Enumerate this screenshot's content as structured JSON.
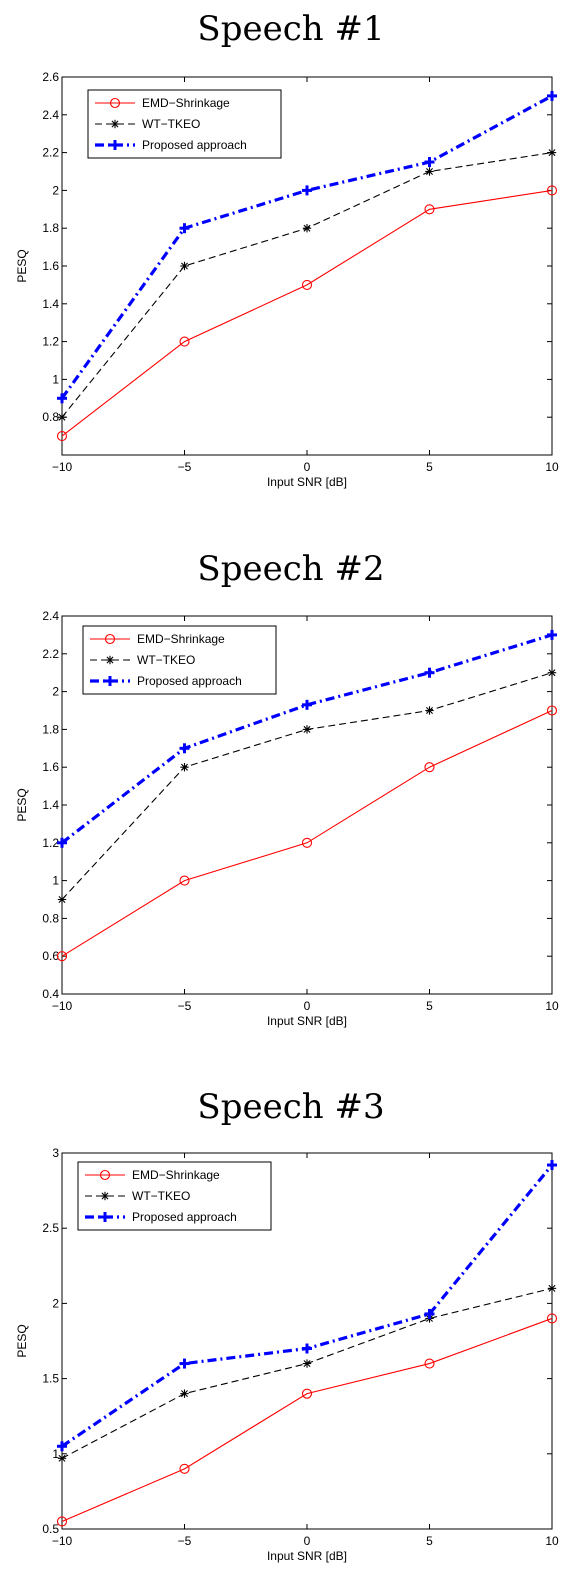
{
  "chart_data": [
    {
      "type": "line",
      "title": "Speech #1",
      "xlabel": "Input SNR [dB]",
      "ylabel": "PESQ",
      "x": [
        -10,
        -5,
        0,
        5,
        10
      ],
      "xlim": [
        -10,
        10
      ],
      "ylim": [
        0.6,
        2.6
      ],
      "xticks": [
        -10,
        -5,
        0,
        5,
        10
      ],
      "yticks": [
        0.8,
        1,
        1.2,
        1.4,
        1.6,
        1.8,
        2,
        2.2,
        2.4,
        2.6
      ],
      "ytick_labels": [
        "0.8",
        "1",
        "1.2",
        "1.4",
        "1.6",
        "1.8",
        "2",
        "2.2",
        "2.4",
        "2.6"
      ],
      "legend_position": "top-left",
      "grid": false,
      "series": [
        {
          "name": "EMD−Shrinkage",
          "values": [
            0.7,
            1.2,
            1.5,
            1.9,
            2.0
          ],
          "color": "#ff0000",
          "marker": "circle",
          "style": "solid"
        },
        {
          "name": "WT−TKEO",
          "values": [
            0.8,
            1.6,
            1.8,
            2.1,
            2.2
          ],
          "color": "#000000",
          "marker": "asterisk",
          "style": "dashed"
        },
        {
          "name": "Proposed approach",
          "values": [
            0.9,
            1.8,
            2.0,
            2.15,
            2.5
          ],
          "color": "#0000ff",
          "marker": "plus",
          "style": "dashdot"
        }
      ]
    },
    {
      "type": "line",
      "title": "Speech #2",
      "xlabel": "Input SNR [dB]",
      "ylabel": "PESQ",
      "x": [
        -10,
        -5,
        0,
        5,
        10
      ],
      "xlim": [
        -10,
        10
      ],
      "ylim": [
        0.4,
        2.4
      ],
      "xticks": [
        -10,
        -5,
        0,
        5,
        10
      ],
      "yticks": [
        0.4,
        0.6,
        0.8,
        1,
        1.2,
        1.4,
        1.6,
        1.8,
        2,
        2.2,
        2.4
      ],
      "ytick_labels": [
        "0.4",
        "0.6",
        "0.8",
        "1",
        "1.2",
        "1.4",
        "1.6",
        "1.8",
        "2",
        "2.2",
        "2.4"
      ],
      "legend_position": "top-left",
      "grid": false,
      "series": [
        {
          "name": "EMD−Shrinkage",
          "values": [
            0.6,
            1.0,
            1.2,
            1.6,
            1.9
          ],
          "color": "#ff0000",
          "marker": "circle",
          "style": "solid"
        },
        {
          "name": "WT−TKEO",
          "values": [
            0.9,
            1.6,
            1.8,
            1.9,
            2.1
          ],
          "color": "#000000",
          "marker": "asterisk",
          "style": "dashed"
        },
        {
          "name": "Proposed approach",
          "values": [
            1.2,
            1.7,
            1.93,
            2.1,
            2.3
          ],
          "color": "#0000ff",
          "marker": "plus",
          "style": "dashdot"
        }
      ]
    },
    {
      "type": "line",
      "title": "Speech #3",
      "xlabel": "Input SNR [dB]",
      "ylabel": "PESQ",
      "x": [
        -10,
        -5,
        0,
        5,
        10
      ],
      "xlim": [
        -10,
        10
      ],
      "ylim": [
        0.5,
        3
      ],
      "xticks": [
        -10,
        -5,
        0,
        5,
        10
      ],
      "yticks": [
        0.5,
        1,
        1.5,
        2,
        2.5,
        3
      ],
      "ytick_labels": [
        "0.5",
        "1",
        "1.5",
        "2",
        "2.5",
        "3"
      ],
      "legend_position": "top-left",
      "grid": false,
      "series": [
        {
          "name": "EMD−Shrinkage",
          "values": [
            0.55,
            0.9,
            1.4,
            1.6,
            1.9
          ],
          "color": "#ff0000",
          "marker": "circle",
          "style": "solid"
        },
        {
          "name": "WT−TKEO",
          "values": [
            0.97,
            1.4,
            1.6,
            1.9,
            2.1
          ],
          "color": "#000000",
          "marker": "asterisk",
          "style": "dashed"
        },
        {
          "name": "Proposed approach",
          "values": [
            1.05,
            1.6,
            1.7,
            1.93,
            2.92
          ],
          "color": "#0000ff",
          "marker": "plus",
          "style": "dashdot"
        }
      ]
    }
  ]
}
